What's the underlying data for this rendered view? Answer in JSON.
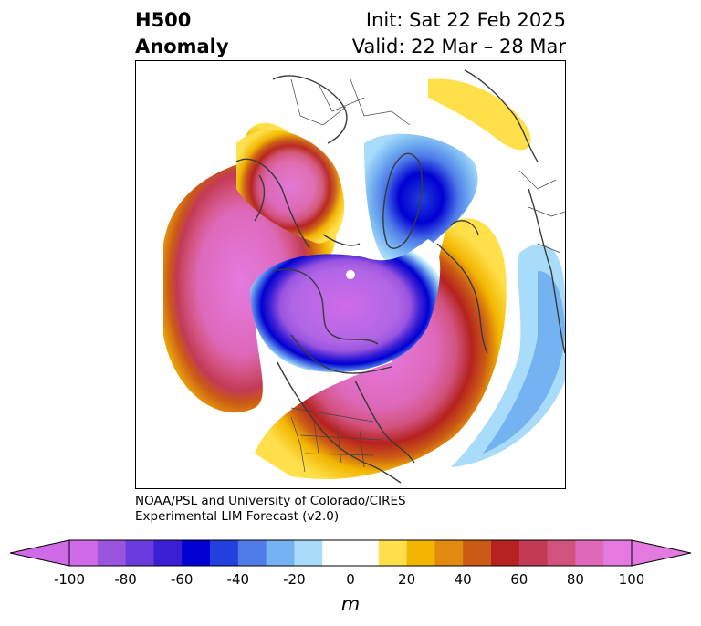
{
  "title": {
    "left_line1": "H500",
    "left_line2": "Anomaly",
    "right_line1": "Init: Sat 22 Feb 2025",
    "right_line2": "Valid: 22 Mar – 28 Mar"
  },
  "credit": {
    "line1": "NOAA/PSL and University of Colorado/CIRES",
    "line2": "Experimental LIM Forecast (v2.0)"
  },
  "map": {
    "projection": "north-polar-stereographic",
    "variable": "500 hPa geopotential height anomaly",
    "features": [
      "coastlines",
      "country-borders",
      "us-state-borders"
    ],
    "anomaly_centers": [
      {
        "sign": "negative",
        "region": "Arctic / Canadian Archipelago"
      },
      {
        "sign": "negative",
        "region": "Greenland – Baffin Bay"
      },
      {
        "sign": "positive",
        "region": "North Pacific / Siberia"
      },
      {
        "sign": "positive",
        "region": "Eastern United States / Atlantic"
      },
      {
        "sign": "positive",
        "region": "Scandinavia / Barents Sea"
      }
    ]
  },
  "colorbar": {
    "unit": "m",
    "ticks": [
      "-100",
      "-80",
      "-60",
      "-40",
      "-20",
      "0",
      "20",
      "40",
      "60",
      "80",
      "100"
    ],
    "colors": [
      "#d06be8",
      "#9b54e0",
      "#6a3bdd",
      "#3b1fd5",
      "#0000d2",
      "#2240dd",
      "#4f7be8",
      "#74b2f1",
      "#a8dcfa",
      "#ffffff",
      "#ffffff",
      "#ffe04a",
      "#f2b600",
      "#e08b0f",
      "#cb5a16",
      "#b5221f",
      "#c23a55",
      "#d2527e",
      "#de69ba",
      "#e47ae0"
    ],
    "extend": "both"
  }
}
